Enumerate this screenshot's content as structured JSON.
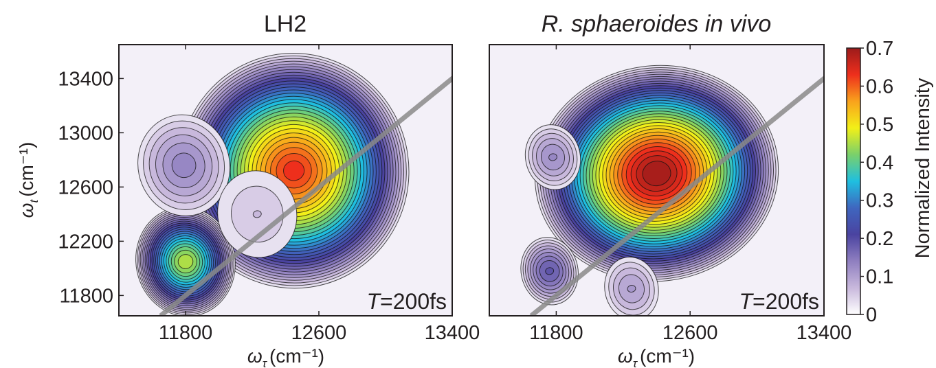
{
  "chart_data": [
    {
      "type": "heatmap",
      "title": "LH2",
      "xlabel": "ω",
      "xlabel_sub": "τ",
      "xlabel_unit": "(cm⁻¹)",
      "ylabel": "ω",
      "ylabel_sub": "t",
      "ylabel_unit": "(cm⁻¹)",
      "xlim": [
        11400,
        13400
      ],
      "ylim": [
        11650,
        13650
      ],
      "xticks": [
        "11800",
        "12600",
        "13400"
      ],
      "yticks": [
        "11800",
        "12200",
        "12600",
        "13000",
        "13400"
      ],
      "annotation_T": "T",
      "annotation_rest": "=200fs",
      "diagonal": true,
      "peaks": [
        {
          "x": 12450,
          "y": 12720,
          "value": 0.63
        },
        {
          "x": 11800,
          "y": 12050,
          "value": 0.45
        },
        {
          "x": 11790,
          "y": 12760,
          "value": 0.13
        },
        {
          "x": 12230,
          "y": 12400,
          "value": 0.06
        }
      ],
      "contour_levels": [
        0.02,
        0.04,
        0.06,
        0.08,
        0.1,
        0.12,
        0.14,
        0.16,
        0.18,
        0.2,
        0.22,
        0.24,
        0.26,
        0.28,
        0.3,
        0.32,
        0.34,
        0.36,
        0.38,
        0.4,
        0.42,
        0.44,
        0.46,
        0.48,
        0.5,
        0.52,
        0.54,
        0.56,
        0.58,
        0.6,
        0.62
      ]
    },
    {
      "type": "heatmap",
      "title": "R. sphaeroides in vivo",
      "xlabel": "ω",
      "xlabel_sub": "τ",
      "xlabel_unit": "(cm⁻¹)",
      "xlim": [
        11400,
        13400
      ],
      "ylim": [
        11650,
        13650
      ],
      "xticks": [
        "11800",
        "12600",
        "13400"
      ],
      "annotation_T": "T",
      "annotation_rest": "=200fs",
      "diagonal": true,
      "peaks": [
        {
          "x": 12400,
          "y": 12700,
          "value": 0.7
        },
        {
          "x": 11760,
          "y": 11980,
          "value": 0.18
        },
        {
          "x": 11780,
          "y": 12820,
          "value": 0.12
        },
        {
          "x": 12250,
          "y": 11850,
          "value": 0.1
        }
      ],
      "contour_levels": [
        0.02,
        0.04,
        0.06,
        0.08,
        0.1,
        0.12,
        0.14,
        0.16,
        0.18,
        0.2,
        0.22,
        0.24,
        0.26,
        0.28,
        0.3,
        0.32,
        0.34,
        0.36,
        0.38,
        0.4,
        0.42,
        0.44,
        0.46,
        0.48,
        0.5,
        0.52,
        0.54,
        0.56,
        0.58,
        0.6,
        0.62,
        0.64,
        0.66,
        0.68
      ]
    }
  ],
  "colorbar": {
    "label": "Normalized Intensity",
    "range": [
      0,
      0.7
    ],
    "ticks": [
      "0",
      "0.1",
      "0.2",
      "0.3",
      "0.4",
      "0.5",
      "0.6",
      "0.7"
    ],
    "colors": [
      "#ffffff",
      "#c8b8dc",
      "#8f7fc0",
      "#4a43a0",
      "#3f66bf",
      "#1fbfe0",
      "#7ad06b",
      "#f2f018",
      "#f9a21c",
      "#ee2f1c",
      "#9c1b1b"
    ]
  }
}
